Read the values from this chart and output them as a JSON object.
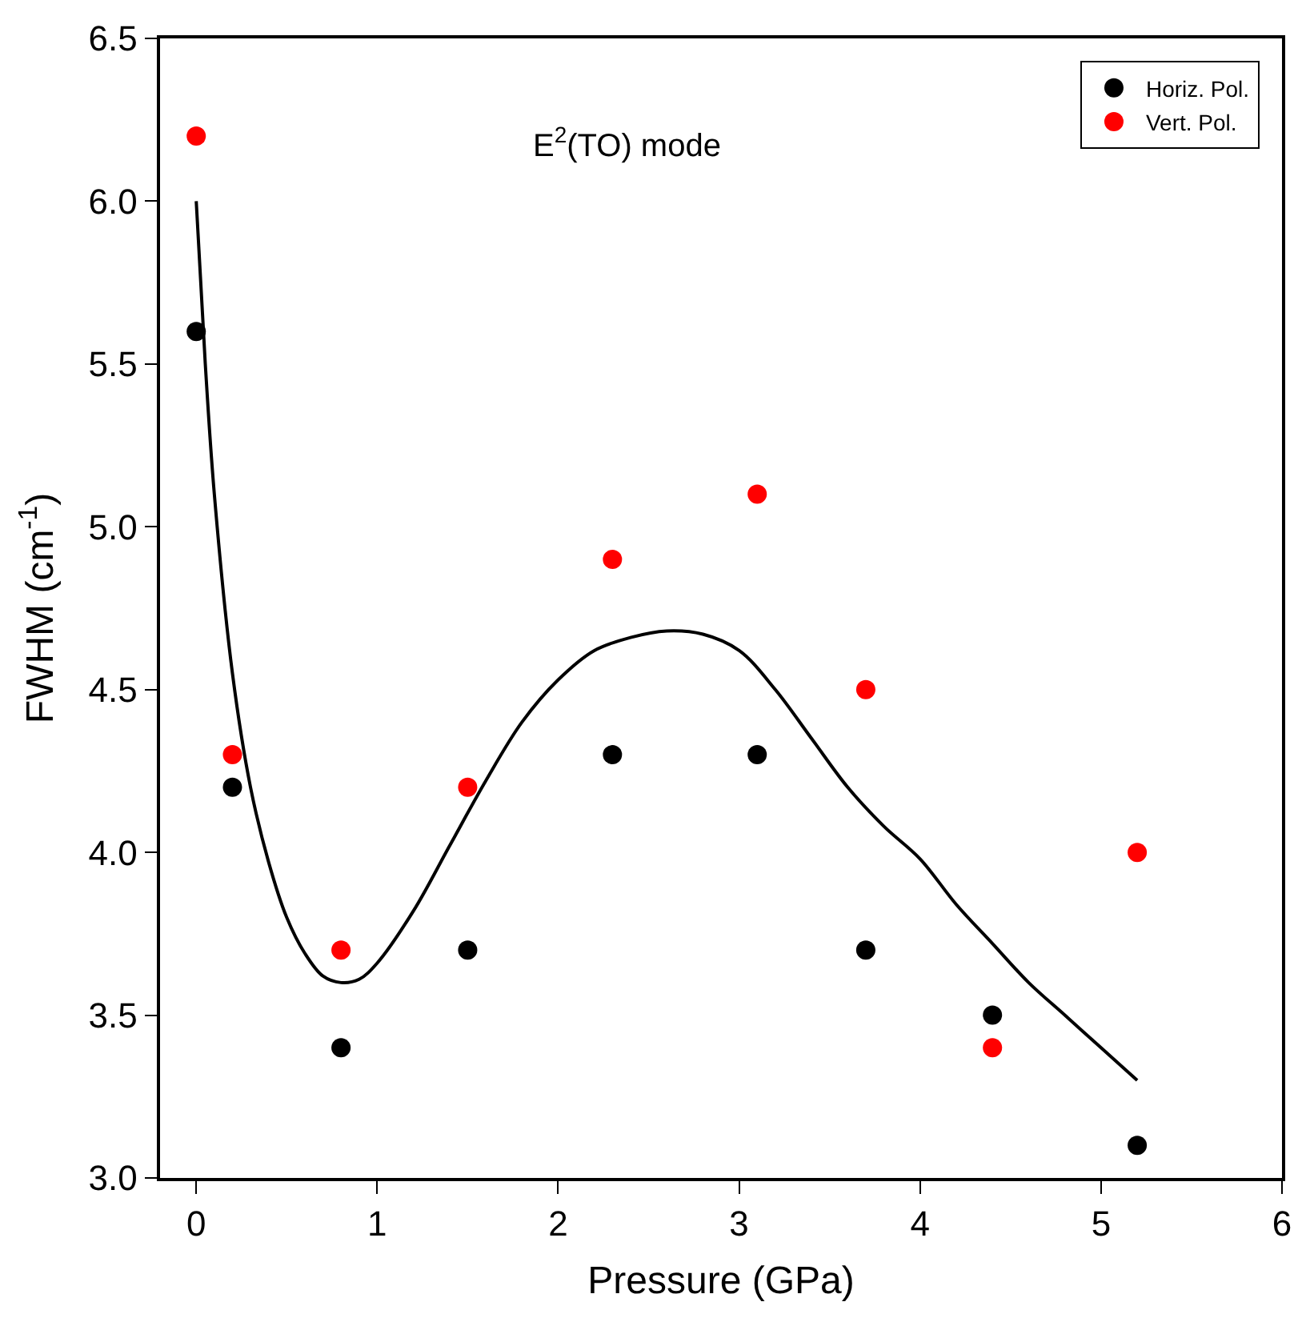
{
  "chart_data": {
    "type": "scatter",
    "xlabel": "Pressure (GPa)",
    "ylabel": "FWHM (cm$^{-1}$)",
    "annotations": [
      "E$^{2}$(TO) mode"
    ],
    "x": [
      0,
      0.2,
      0.8,
      1.5,
      2.3,
      3.1,
      3.7,
      4.4,
      5.2
    ],
    "series": [
      {
        "name": "Horiz. Pol.",
        "color": "#000000",
        "values": [
          5.6,
          4.2,
          3.4,
          3.7,
          4.3,
          4.3,
          3.7,
          3.5,
          3.1
        ],
        "marker": "circle"
      },
      {
        "name": "Vert. Pol.",
        "color": "#ff0000",
        "values": [
          6.2,
          4.3,
          3.7,
          4.2,
          4.9,
          5.1,
          4.5,
          3.4,
          4.0
        ],
        "marker": "circle"
      },
      {
        "type": "line",
        "color": "#000000",
        "marker": "none",
        "x": [
          0,
          0.05,
          0.1,
          0.2,
          0.3,
          0.4,
          0.5,
          0.6,
          0.7,
          0.8,
          0.9,
          1.0,
          1.2,
          1.4,
          1.6,
          1.8,
          2.0,
          2.2,
          2.4,
          2.6,
          2.8,
          3.0,
          3.2,
          3.4,
          3.6,
          3.8,
          4.0,
          4.2,
          4.4,
          4.6,
          4.8,
          5.0,
          5.2
        ],
        "values": [
          6.0,
          5.5,
          5.1,
          4.55,
          4.2,
          3.97,
          3.8,
          3.69,
          3.62,
          3.6,
          3.61,
          3.66,
          3.82,
          4.02,
          4.22,
          4.4,
          4.53,
          4.62,
          4.66,
          4.68,
          4.67,
          4.62,
          4.5,
          4.35,
          4.2,
          4.08,
          3.98,
          3.84,
          3.72,
          3.6,
          3.5,
          3.4,
          3.3
        ]
      }
    ],
    "legend": "top right",
    "xlim": [
      -0.2,
      6
    ],
    "xticks": [
      0,
      1,
      2,
      3,
      4,
      5,
      6
    ],
    "ylim": [
      3.0,
      6.5
    ],
    "yticks": [
      {
        "value": 3,
        "label": "3.0"
      },
      3.5,
      {
        "value": 4,
        "label": "4.0"
      },
      4.5,
      {
        "value": 5,
        "label": "5.0"
      },
      5.5,
      {
        "value": 6,
        "label": "6.0"
      },
      6.5
    ]
  }
}
